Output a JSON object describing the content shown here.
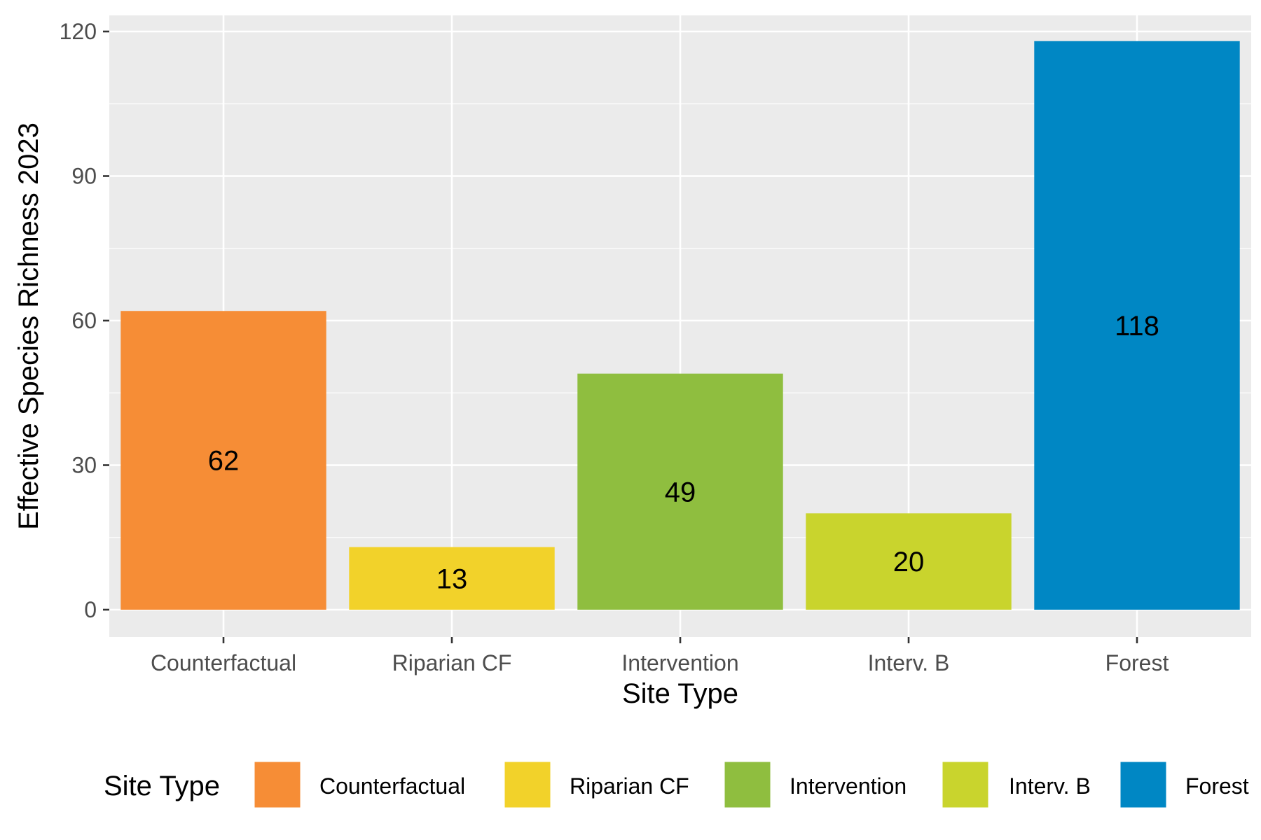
{
  "chart_data": {
    "type": "bar",
    "title": "",
    "xlabel": "Site Type",
    "ylabel": "Effective Species Richness 2023",
    "categories": [
      "Counterfactual",
      "Riparian CF",
      "Intervention",
      "Interv. B",
      "Forest"
    ],
    "values": [
      62,
      13,
      49,
      20,
      118
    ],
    "data_labels": [
      "62",
      "13",
      "49",
      "20",
      "118"
    ],
    "colors": [
      "#F68D36",
      "#F2D22A",
      "#8FBE3F",
      "#C9D42D",
      "#0087C4"
    ],
    "ylim": [
      -6,
      122
    ],
    "yticks": [
      0,
      30,
      60,
      90,
      120
    ],
    "ytick_labels": [
      "0",
      "30",
      "60",
      "90",
      "120"
    ],
    "grid": true,
    "legend": {
      "title": "Site Type",
      "position": "bottom",
      "entries": [
        "Counterfactual",
        "Riparian CF",
        "Intervention",
        "Interv. B",
        "Forest"
      ]
    },
    "panel_color": "#EBEBEB",
    "grid_color": "#FFFFFF"
  }
}
